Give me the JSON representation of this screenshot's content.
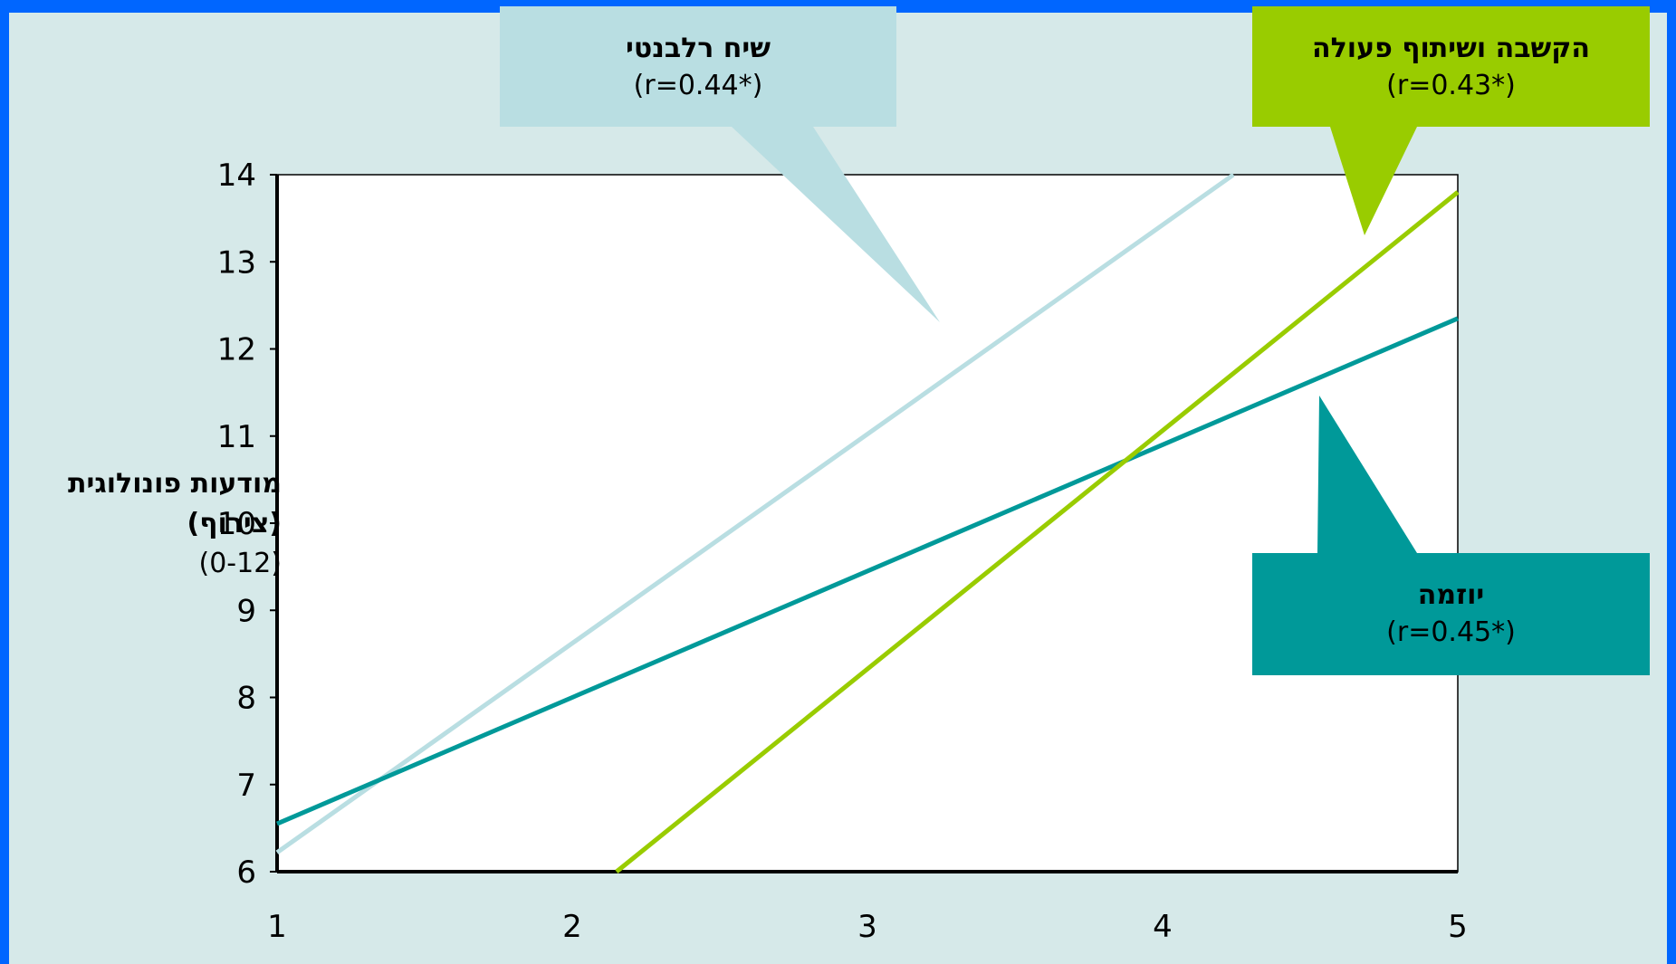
{
  "chart_data": {
    "type": "line",
    "xlim": [
      1,
      5
    ],
    "ylim": [
      6,
      14
    ],
    "x_ticks": [
      "1",
      "2",
      "3",
      "4",
      "5"
    ],
    "y_ticks": [
      "6",
      "7",
      "8",
      "9",
      "10",
      "11",
      "12",
      "13",
      "14"
    ],
    "ylabel": {
      "line1": "מודעות פונולוגית",
      "line2": "(צירוף)",
      "line3": "(0-12)"
    },
    "series": [
      {
        "name": "שיח רלבנטי",
        "correlation": "(r=0.44*)",
        "color": "#b9dee2",
        "x": [
          1,
          4.24
        ],
        "y": [
          6.22,
          14.0
        ]
      },
      {
        "name": "יוזמה",
        "correlation": "(r=0.45*)",
        "color": "#009999",
        "x": [
          1,
          5
        ],
        "y": [
          6.55,
          12.35
        ]
      },
      {
        "name": "הקשבה ושיתוף פעולה",
        "correlation": "(r=0.43*)",
        "color": "#99cc00",
        "x": [
          2.15,
          5
        ],
        "y": [
          6.0,
          13.8
        ]
      }
    ]
  }
}
